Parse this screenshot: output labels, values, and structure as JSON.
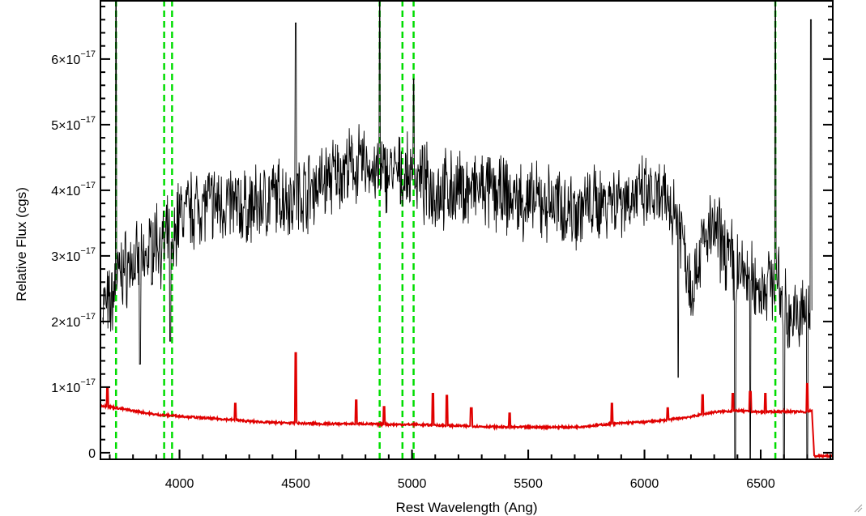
{
  "chart_data": {
    "type": "line",
    "title": "",
    "xlabel": "Rest Wavelength (Ang)",
    "ylabel": "Relative Flux (cgs)",
    "xlim": [
      3660,
      6810
    ],
    "ylim": [
      -1e-18,
      6.9e-17
    ],
    "x_ticks": [
      {
        "value": 4000,
        "label": "4000"
      },
      {
        "value": 4500,
        "label": "4500"
      },
      {
        "value": 5000,
        "label": "5000"
      },
      {
        "value": 5500,
        "label": "5500"
      },
      {
        "value": 6000,
        "label": "6000"
      },
      {
        "value": 6500,
        "label": "6500"
      }
    ],
    "y_ticks": [
      {
        "value": 0,
        "mantissa": "0",
        "exponent": ""
      },
      {
        "value": 1e-17,
        "mantissa": "1×10",
        "exponent": "−17"
      },
      {
        "value": 2e-17,
        "mantissa": "2×10",
        "exponent": "−17"
      },
      {
        "value": 3e-17,
        "mantissa": "3×10",
        "exponent": "−17"
      },
      {
        "value": 4e-17,
        "mantissa": "4×10",
        "exponent": "−17"
      },
      {
        "value": 5e-17,
        "mantissa": "5×10",
        "exponent": "−17"
      },
      {
        "value": 6e-17,
        "mantissa": "6×10",
        "exponent": "−17"
      }
    ],
    "grid": false,
    "series": [
      {
        "color": "#000000",
        "style": "noisy-spectrum",
        "x": [
          3670,
          3700,
          3727,
          3740,
          3760,
          3800,
          3840,
          3860,
          3900,
          3934,
          3950,
          3968,
          3990,
          4050,
          4100,
          4200,
          4300,
          4400,
          4500,
          4600,
          4700,
          4800,
          4861,
          4900,
          4959,
          5007,
          5050,
          5100,
          5200,
          5300,
          5400,
          5500,
          5600,
          5700,
          5800,
          5850,
          5900,
          6000,
          6100,
          6150,
          6200,
          6250,
          6300,
          6400,
          6500,
          6563,
          6600,
          6650,
          6700,
          6720
        ],
        "values": [
          2.3e-17,
          2.2e-17,
          2.6e-17,
          2.7e-17,
          2.8e-17,
          2.9e-17,
          2.8e-17,
          3e-17,
          3.3e-17,
          3.1e-17,
          3.3e-17,
          2.9e-17,
          3.6e-17,
          3.7e-17,
          3.8e-17,
          3.8e-17,
          3.7e-17,
          3.9e-17,
          3.9e-17,
          4.1e-17,
          4.3e-17,
          4.4e-17,
          4.2e-17,
          4.3e-17,
          4.2e-17,
          4.2e-17,
          4.1e-17,
          4e-17,
          4e-17,
          4e-17,
          3.9e-17,
          3.8e-17,
          3.8e-17,
          3.7e-17,
          3.8e-17,
          3.9e-17,
          3.9e-17,
          3.9e-17,
          3.8e-17,
          3.6e-17,
          2.5e-17,
          3.2e-17,
          3.4e-17,
          2.8e-17,
          2.5e-17,
          2.7e-17,
          2.2e-17,
          2e-17,
          2.2e-17,
          2e-17
        ],
        "spikes": [
          {
            "x": 3727,
            "value": 7e-17
          },
          {
            "x": 4500,
            "value": 6.55e-17
          },
          {
            "x": 4861,
            "value": 7e-17
          },
          {
            "x": 5007,
            "value": 5.7e-17
          },
          {
            "x": 6563,
            "value": 7e-17
          },
          {
            "x": 6716,
            "value": 6.6e-17
          },
          {
            "x": 3830,
            "value": 1.35e-17
          },
          {
            "x": 3960,
            "value": 1.7e-17
          },
          {
            "x": 6145,
            "value": 1.15e-17
          },
          {
            "x": 6390,
            "value": -1e-18
          },
          {
            "x": 6455,
            "value": -1e-18
          },
          {
            "x": 6600,
            "value": -1e-18
          },
          {
            "x": 6700,
            "value": -1e-18
          }
        ]
      },
      {
        "color": "#e00000",
        "style": "error-spectrum",
        "x": [
          3660,
          3700,
          3800,
          3900,
          4000,
          4100,
          4200,
          4300,
          4400,
          4500,
          4600,
          4700,
          4800,
          4900,
          5000,
          5100,
          5200,
          5300,
          5400,
          5500,
          5600,
          5700,
          5800,
          5900,
          6000,
          6100,
          6200,
          6300,
          6400,
          6500,
          6600,
          6700,
          6720,
          6730,
          6810
        ],
        "values": [
          7.2e-18,
          7e-18,
          6.4e-18,
          5.8e-18,
          5.6e-18,
          5.3e-18,
          5.1e-18,
          4.8e-18,
          4.6e-18,
          4.5e-18,
          4.4e-18,
          4.4e-18,
          4.4e-18,
          4.3e-18,
          4.3e-18,
          4.2e-18,
          4.1e-18,
          4e-18,
          3.9e-18,
          3.9e-18,
          3.9e-18,
          3.9e-18,
          4.2e-18,
          4.5e-18,
          4.7e-18,
          5e-18,
          5.5e-18,
          6.2e-18,
          6.4e-18,
          6.2e-18,
          6.3e-18,
          6.2e-18,
          6.5e-18,
          -5e-19,
          -5e-19
        ],
        "spikes": [
          {
            "x": 3690,
            "value": 9.8e-18
          },
          {
            "x": 4240,
            "value": 7.5e-18
          },
          {
            "x": 4500,
            "value": 1.52e-17
          },
          {
            "x": 4760,
            "value": 8e-18
          },
          {
            "x": 4880,
            "value": 7e-18
          },
          {
            "x": 5090,
            "value": 9e-18
          },
          {
            "x": 5150,
            "value": 8.7e-18
          },
          {
            "x": 5255,
            "value": 6.8e-18
          },
          {
            "x": 5420,
            "value": 6e-18
          },
          {
            "x": 5860,
            "value": 7.5e-18
          },
          {
            "x": 6100,
            "value": 6.8e-18
          },
          {
            "x": 6250,
            "value": 8.8e-18
          },
          {
            "x": 6380,
            "value": 9e-18
          },
          {
            "x": 6455,
            "value": 9.3e-18
          },
          {
            "x": 6520,
            "value": 9e-18
          },
          {
            "x": 6700,
            "value": 1.05e-17
          }
        ]
      }
    ],
    "reference_lines": {
      "color": "#00dd00",
      "style": "dashed",
      "x": [
        3727,
        3934,
        3968,
        4861,
        4959,
        5007,
        6563
      ]
    }
  }
}
